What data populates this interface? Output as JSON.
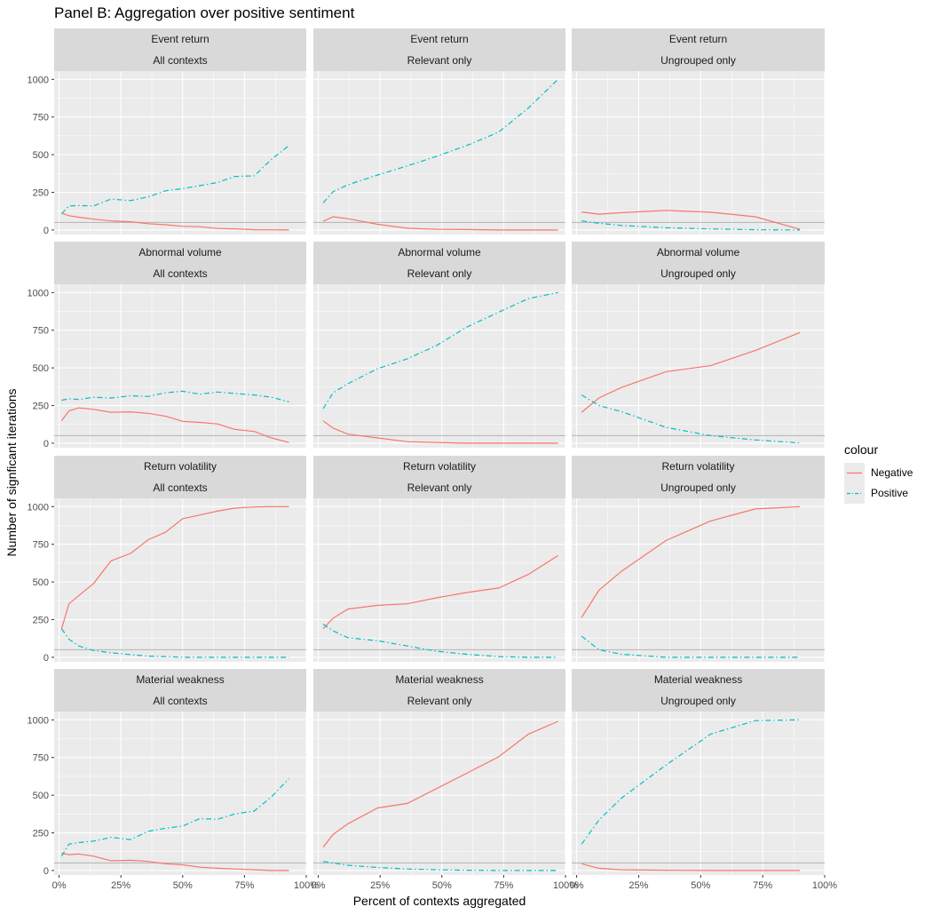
{
  "chart_data": {
    "type": "line",
    "title": "Panel B: Aggregation over positive sentiment",
    "xlabel": "Percent of contexts aggregated",
    "ylabel": "Number of signficant iterations",
    "x_ticks": [
      "0%",
      "25%",
      "50%",
      "75%",
      "100%"
    ],
    "y_ticks": [
      "0",
      "250",
      "500",
      "750",
      "1000"
    ],
    "xlim": [
      -0.02,
      1.0
    ],
    "ylim": [
      -30,
      1055
    ],
    "reference_line_y": 50,
    "legend": {
      "title": "colour",
      "position": "right",
      "entries": [
        {
          "name": "Negative",
          "color": "#F8766D",
          "dash": "solid"
        },
        {
          "name": "Positive",
          "color": "#00BFC4",
          "dash": "dashdot"
        }
      ]
    },
    "rows": [
      "Event return",
      "Abnormal volume",
      "Return volatility",
      "Material weakness"
    ],
    "cols": [
      "All contexts",
      "Relevant only",
      "Ungrouped only"
    ],
    "panels": [
      {
        "row": "Event return",
        "col": "All contexts",
        "negative": [
          [
            0.01,
            112
          ],
          [
            0.04,
            95
          ],
          [
            0.08,
            85
          ],
          [
            0.14,
            72
          ],
          [
            0.21,
            60
          ],
          [
            0.29,
            55
          ],
          [
            0.36,
            42
          ],
          [
            0.43,
            35
          ],
          [
            0.5,
            25
          ],
          [
            0.57,
            22
          ],
          [
            0.64,
            10
          ],
          [
            0.71,
            8
          ],
          [
            0.79,
            2
          ],
          [
            0.86,
            1
          ],
          [
            0.93,
            0
          ]
        ],
        "positive": [
          [
            0.01,
            108
          ],
          [
            0.04,
            160
          ],
          [
            0.08,
            162
          ],
          [
            0.14,
            160
          ],
          [
            0.21,
            205
          ],
          [
            0.29,
            195
          ],
          [
            0.36,
            220
          ],
          [
            0.43,
            260
          ],
          [
            0.5,
            275
          ],
          [
            0.57,
            295
          ],
          [
            0.64,
            315
          ],
          [
            0.71,
            355
          ],
          [
            0.79,
            360
          ],
          [
            0.86,
            470
          ],
          [
            0.93,
            560
          ]
        ]
      },
      {
        "row": "Event return",
        "col": "Relevant only",
        "negative": [
          [
            0.02,
            58
          ],
          [
            0.06,
            88
          ],
          [
            0.12,
            75
          ],
          [
            0.24,
            38
          ],
          [
            0.36,
            12
          ],
          [
            0.48,
            5
          ],
          [
            0.6,
            3
          ],
          [
            0.73,
            0
          ],
          [
            0.85,
            0
          ],
          [
            0.97,
            0
          ]
        ],
        "positive": [
          [
            0.02,
            180
          ],
          [
            0.06,
            255
          ],
          [
            0.12,
            300
          ],
          [
            0.24,
            365
          ],
          [
            0.36,
            425
          ],
          [
            0.48,
            490
          ],
          [
            0.6,
            560
          ],
          [
            0.73,
            650
          ],
          [
            0.85,
            810
          ],
          [
            0.97,
            1000
          ]
        ]
      },
      {
        "row": "Event return",
        "col": "Ungrouped only",
        "negative": [
          [
            0.02,
            120
          ],
          [
            0.09,
            105
          ],
          [
            0.18,
            115
          ],
          [
            0.36,
            130
          ],
          [
            0.54,
            118
          ],
          [
            0.72,
            88
          ],
          [
            0.9,
            5
          ]
        ],
        "positive": [
          [
            0.02,
            60
          ],
          [
            0.09,
            45
          ],
          [
            0.18,
            30
          ],
          [
            0.36,
            15
          ],
          [
            0.54,
            7
          ],
          [
            0.72,
            2
          ],
          [
            0.9,
            0
          ]
        ]
      },
      {
        "row": "Abnormal volume",
        "col": "All contexts",
        "negative": [
          [
            0.01,
            150
          ],
          [
            0.04,
            215
          ],
          [
            0.08,
            235
          ],
          [
            0.14,
            225
          ],
          [
            0.21,
            205
          ],
          [
            0.29,
            208
          ],
          [
            0.36,
            198
          ],
          [
            0.43,
            180
          ],
          [
            0.5,
            145
          ],
          [
            0.57,
            138
          ],
          [
            0.64,
            128
          ],
          [
            0.71,
            92
          ],
          [
            0.79,
            78
          ],
          [
            0.86,
            35
          ],
          [
            0.93,
            5
          ]
        ],
        "positive": [
          [
            0.01,
            285
          ],
          [
            0.04,
            295
          ],
          [
            0.08,
            290
          ],
          [
            0.14,
            305
          ],
          [
            0.21,
            300
          ],
          [
            0.29,
            315
          ],
          [
            0.36,
            310
          ],
          [
            0.43,
            335
          ],
          [
            0.5,
            345
          ],
          [
            0.57,
            325
          ],
          [
            0.64,
            340
          ],
          [
            0.71,
            330
          ],
          [
            0.79,
            320
          ],
          [
            0.86,
            305
          ],
          [
            0.93,
            275
          ]
        ]
      },
      {
        "row": "Abnormal volume",
        "col": "Relevant only",
        "negative": [
          [
            0.02,
            148
          ],
          [
            0.06,
            100
          ],
          [
            0.12,
            60
          ],
          [
            0.24,
            35
          ],
          [
            0.36,
            10
          ],
          [
            0.48,
            5
          ],
          [
            0.6,
            0
          ],
          [
            0.73,
            0
          ],
          [
            0.85,
            0
          ],
          [
            0.97,
            0
          ]
        ],
        "positive": [
          [
            0.02,
            230
          ],
          [
            0.06,
            335
          ],
          [
            0.12,
            395
          ],
          [
            0.24,
            495
          ],
          [
            0.36,
            560
          ],
          [
            0.48,
            650
          ],
          [
            0.6,
            770
          ],
          [
            0.73,
            870
          ],
          [
            0.85,
            960
          ],
          [
            0.97,
            1000
          ]
        ]
      },
      {
        "row": "Abnormal volume",
        "col": "Ungrouped only",
        "negative": [
          [
            0.02,
            205
          ],
          [
            0.09,
            300
          ],
          [
            0.18,
            370
          ],
          [
            0.36,
            475
          ],
          [
            0.54,
            515
          ],
          [
            0.72,
            615
          ],
          [
            0.9,
            735
          ]
        ],
        "positive": [
          [
            0.02,
            320
          ],
          [
            0.09,
            250
          ],
          [
            0.18,
            210
          ],
          [
            0.36,
            105
          ],
          [
            0.54,
            50
          ],
          [
            0.72,
            22
          ],
          [
            0.9,
            2
          ]
        ]
      },
      {
        "row": "Return volatility",
        "col": "All contexts",
        "negative": [
          [
            0.01,
            190
          ],
          [
            0.04,
            355
          ],
          [
            0.08,
            410
          ],
          [
            0.14,
            490
          ],
          [
            0.21,
            640
          ],
          [
            0.29,
            690
          ],
          [
            0.36,
            780
          ],
          [
            0.43,
            830
          ],
          [
            0.5,
            920
          ],
          [
            0.57,
            945
          ],
          [
            0.64,
            970
          ],
          [
            0.71,
            990
          ],
          [
            0.79,
            998
          ],
          [
            0.86,
            1000
          ],
          [
            0.93,
            1000
          ]
        ],
        "positive": [
          [
            0.01,
            190
          ],
          [
            0.04,
            120
          ],
          [
            0.08,
            75
          ],
          [
            0.14,
            45
          ],
          [
            0.21,
            30
          ],
          [
            0.29,
            18
          ],
          [
            0.36,
            8
          ],
          [
            0.43,
            5
          ],
          [
            0.5,
            0
          ],
          [
            0.57,
            0
          ],
          [
            0.64,
            0
          ],
          [
            0.71,
            0
          ],
          [
            0.79,
            0
          ],
          [
            0.86,
            0
          ],
          [
            0.93,
            0
          ]
        ]
      },
      {
        "row": "Return volatility",
        "col": "Relevant only",
        "negative": [
          [
            0.02,
            190
          ],
          [
            0.06,
            260
          ],
          [
            0.12,
            320
          ],
          [
            0.24,
            345
          ],
          [
            0.36,
            355
          ],
          [
            0.48,
            395
          ],
          [
            0.6,
            430
          ],
          [
            0.73,
            460
          ],
          [
            0.85,
            550
          ],
          [
            0.97,
            675
          ]
        ],
        "positive": [
          [
            0.02,
            220
          ],
          [
            0.06,
            175
          ],
          [
            0.12,
            130
          ],
          [
            0.24,
            110
          ],
          [
            0.36,
            75
          ],
          [
            0.48,
            40
          ],
          [
            0.6,
            20
          ],
          [
            0.73,
            5
          ],
          [
            0.85,
            0
          ],
          [
            0.97,
            0
          ]
        ]
      },
      {
        "row": "Return volatility",
        "col": "Ungrouped only",
        "negative": [
          [
            0.02,
            265
          ],
          [
            0.09,
            445
          ],
          [
            0.18,
            570
          ],
          [
            0.36,
            775
          ],
          [
            0.54,
            905
          ],
          [
            0.72,
            985
          ],
          [
            0.9,
            1000
          ]
        ],
        "positive": [
          [
            0.02,
            140
          ],
          [
            0.09,
            50
          ],
          [
            0.18,
            20
          ],
          [
            0.36,
            0
          ],
          [
            0.54,
            0
          ],
          [
            0.72,
            0
          ],
          [
            0.9,
            0
          ]
        ]
      },
      {
        "row": "Material weakness",
        "col": "All contexts",
        "negative": [
          [
            0.01,
            115
          ],
          [
            0.04,
            105
          ],
          [
            0.08,
            110
          ],
          [
            0.14,
            95
          ],
          [
            0.21,
            65
          ],
          [
            0.29,
            68
          ],
          [
            0.36,
            60
          ],
          [
            0.43,
            45
          ],
          [
            0.5,
            38
          ],
          [
            0.57,
            22
          ],
          [
            0.64,
            15
          ],
          [
            0.71,
            10
          ],
          [
            0.79,
            5
          ],
          [
            0.86,
            0
          ],
          [
            0.93,
            0
          ]
        ],
        "positive": [
          [
            0.01,
            95
          ],
          [
            0.04,
            175
          ],
          [
            0.08,
            185
          ],
          [
            0.14,
            195
          ],
          [
            0.21,
            220
          ],
          [
            0.29,
            205
          ],
          [
            0.36,
            260
          ],
          [
            0.43,
            280
          ],
          [
            0.5,
            295
          ],
          [
            0.57,
            345
          ],
          [
            0.64,
            340
          ],
          [
            0.71,
            375
          ],
          [
            0.79,
            395
          ],
          [
            0.86,
            490
          ],
          [
            0.93,
            610
          ]
        ]
      },
      {
        "row": "Material weakness",
        "col": "Relevant only",
        "negative": [
          [
            0.02,
            155
          ],
          [
            0.06,
            240
          ],
          [
            0.12,
            310
          ],
          [
            0.24,
            415
          ],
          [
            0.36,
            445
          ],
          [
            0.48,
            545
          ],
          [
            0.6,
            645
          ],
          [
            0.73,
            755
          ],
          [
            0.85,
            905
          ],
          [
            0.97,
            990
          ]
        ],
        "positive": [
          [
            0.02,
            60
          ],
          [
            0.06,
            50
          ],
          [
            0.12,
            35
          ],
          [
            0.24,
            20
          ],
          [
            0.36,
            10
          ],
          [
            0.48,
            5
          ],
          [
            0.6,
            2
          ],
          [
            0.73,
            0
          ],
          [
            0.85,
            0
          ],
          [
            0.97,
            0
          ]
        ]
      },
      {
        "row": "Material weakness",
        "col": "Ungrouped only",
        "negative": [
          [
            0.02,
            45
          ],
          [
            0.09,
            15
          ],
          [
            0.18,
            5
          ],
          [
            0.36,
            2
          ],
          [
            0.54,
            0
          ],
          [
            0.72,
            0
          ],
          [
            0.9,
            0
          ]
        ],
        "positive": [
          [
            0.02,
            175
          ],
          [
            0.09,
            335
          ],
          [
            0.18,
            480
          ],
          [
            0.36,
            700
          ],
          [
            0.54,
            905
          ],
          [
            0.72,
            995
          ],
          [
            0.9,
            1000
          ]
        ]
      }
    ]
  }
}
